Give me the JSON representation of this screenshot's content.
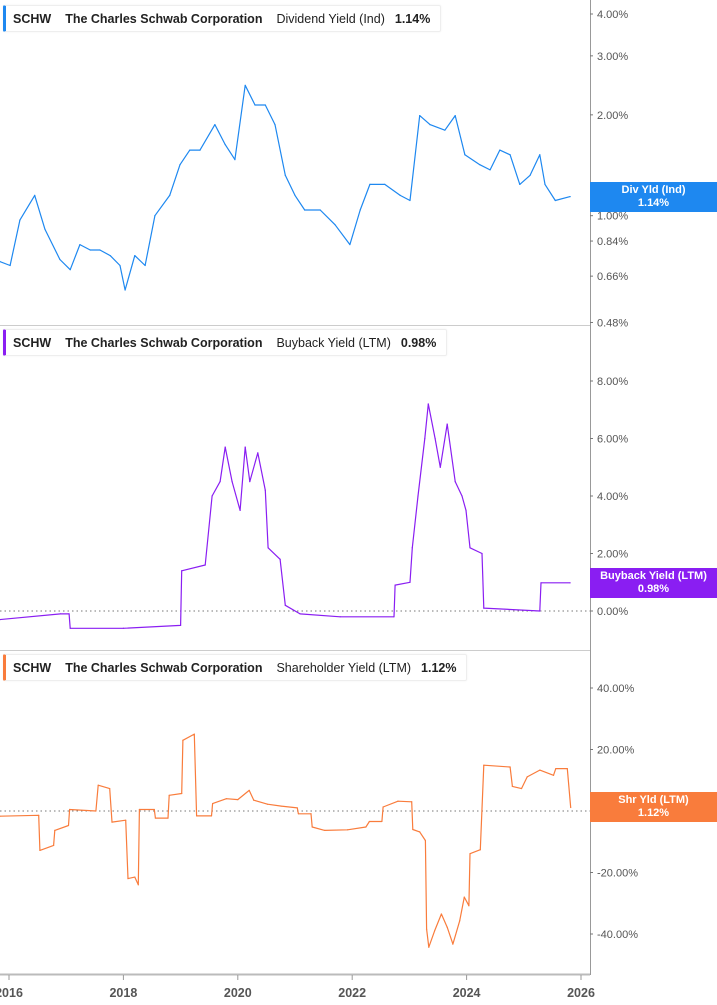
{
  "chart_data": [
    {
      "type": "line",
      "ticker": "SCHW",
      "company": "The Charles Schwab Corporation",
      "metric": "Dividend Yield (Ind)",
      "latest_value": "1.14%",
      "tag_label": "Div Yld (Ind)",
      "color": "#1e88f0",
      "y_scale": "log",
      "yticks": [
        "0.48%",
        "0.66%",
        "0.84%",
        "1.00%",
        "2.00%",
        "3.00%",
        "4.00%"
      ],
      "ytick_values": [
        0.48,
        0.66,
        0.84,
        1.0,
        2.0,
        3.0,
        4.0
      ],
      "x": [
        2015.84,
        2016.02,
        2016.19,
        2016.45,
        2016.63,
        2016.89,
        2017.07,
        2017.24,
        2017.42,
        2017.59,
        2017.77,
        2017.94,
        2018.03,
        2018.2,
        2018.38,
        2018.55,
        2018.81,
        2018.99,
        2019.16,
        2019.34,
        2019.6,
        2019.78,
        2019.95,
        2020.13,
        2020.3,
        2020.48,
        2020.65,
        2020.83,
        2021.0,
        2021.17,
        2021.44,
        2021.7,
        2021.96,
        2022.14,
        2022.31,
        2022.57,
        2022.84,
        2023.01,
        2023.18,
        2023.36,
        2023.62,
        2023.8,
        2023.97,
        2024.23,
        2024.41,
        2024.58,
        2024.76,
        2024.93,
        2025.11,
        2025.28,
        2025.37,
        2025.55,
        2025.81
      ],
      "values": [
        0.73,
        0.71,
        0.97,
        1.15,
        0.91,
        0.74,
        0.69,
        0.82,
        0.79,
        0.79,
        0.76,
        0.71,
        0.6,
        0.76,
        0.71,
        1.0,
        1.15,
        1.42,
        1.57,
        1.57,
        1.87,
        1.63,
        1.47,
        2.45,
        2.14,
        2.14,
        1.87,
        1.32,
        1.15,
        1.04,
        1.04,
        0.94,
        0.82,
        1.04,
        1.24,
        1.24,
        1.15,
        1.11,
        1.99,
        1.87,
        1.8,
        1.99,
        1.52,
        1.42,
        1.37,
        1.57,
        1.52,
        1.24,
        1.32,
        1.52,
        1.24,
        1.11,
        1.14
      ]
    },
    {
      "type": "line",
      "ticker": "SCHW",
      "company": "The Charles Schwab Corporation",
      "metric": "Buyback Yield (LTM)",
      "latest_value": "0.98%",
      "tag_label": "Buyback Yield (LTM)",
      "color": "#8a1ef2",
      "y_scale": "linear",
      "yticks": [
        "0.00%",
        "2.00%",
        "4.00%",
        "6.00%",
        "8.00%"
      ],
      "ytick_values": [
        0,
        2,
        4,
        6,
        8
      ],
      "x": [
        2015.84,
        2016.9,
        2017.05,
        2017.07,
        2018.0,
        2019.0,
        2019.02,
        2019.43,
        2019.55,
        2019.69,
        2019.78,
        2019.9,
        2020.04,
        2020.13,
        2020.21,
        2020.35,
        2020.48,
        2020.53,
        2020.74,
        2020.83,
        2021.09,
        2021.79,
        2022.73,
        2022.75,
        2023.01,
        2023.05,
        2023.15,
        2023.27,
        2023.33,
        2023.45,
        2023.54,
        2023.66,
        2023.8,
        2023.92,
        2023.99,
        2024.06,
        2024.27,
        2024.3,
        2025.28,
        2025.3,
        2025.81
      ],
      "values": [
        -0.3,
        -0.1,
        -0.1,
        -0.6,
        -0.6,
        -0.5,
        1.4,
        1.6,
        4.0,
        4.5,
        5.7,
        4.5,
        3.5,
        5.7,
        4.5,
        5.5,
        4.2,
        2.2,
        1.8,
        0.2,
        -0.1,
        -0.2,
        -0.2,
        0.9,
        1.0,
        2.2,
        4.0,
        6.0,
        7.2,
        6.0,
        5.0,
        6.5,
        4.5,
        4.0,
        3.5,
        2.2,
        2.0,
        0.1,
        0.0,
        0.98,
        0.98
      ]
    },
    {
      "type": "line",
      "ticker": "SCHW",
      "company": "The Charles Schwab Corporation",
      "metric": "Shareholder Yield (LTM)",
      "latest_value": "1.12%",
      "tag_label": "Shr Yld (LTM)",
      "color": "#f97c3c",
      "y_scale": "linear",
      "yticks": [
        "-40.00%",
        "-20.00%",
        "0.00%",
        "20.00%",
        "40.00%"
      ],
      "ytick_values": [
        -40,
        -20,
        0,
        20,
        40
      ],
      "x": [
        2015.84,
        2016.52,
        2016.54,
        2016.78,
        2016.8,
        2017.04,
        2017.06,
        2017.52,
        2017.56,
        2017.76,
        2017.8,
        2018.04,
        2018.08,
        2018.2,
        2018.26,
        2018.28,
        2018.54,
        2018.56,
        2018.78,
        2018.8,
        2019.02,
        2019.04,
        2019.24,
        2019.28,
        2019.54,
        2019.56,
        2019.8,
        2020.0,
        2020.2,
        2020.28,
        2020.52,
        2020.76,
        2021.04,
        2021.06,
        2021.28,
        2021.3,
        2021.52,
        2021.92,
        2022.24,
        2022.3,
        2022.52,
        2022.54,
        2022.8,
        2023.04,
        2023.06,
        2023.18,
        2023.28,
        2023.3,
        2023.34,
        2023.44,
        2023.56,
        2023.66,
        2023.76,
        2023.88,
        2023.96,
        2024.04,
        2024.06,
        2024.24,
        2024.3,
        2024.76,
        2024.8,
        2024.96,
        2025.06,
        2025.28,
        2025.52,
        2025.56,
        2025.76,
        2025.82
      ],
      "values": [
        -1.7,
        -1.4,
        -12.8,
        -11.2,
        -6.3,
        -4.7,
        0.5,
        0,
        8.4,
        7.3,
        -3.6,
        -3,
        -22,
        -21.5,
        -24,
        0.5,
        0.5,
        -2.3,
        -2.3,
        5.1,
        5.7,
        23,
        25,
        -1.6,
        -1.6,
        2.4,
        4,
        3.7,
        6.7,
        3.5,
        2.2,
        1.6,
        1.0,
        -0.9,
        -0.9,
        -5.2,
        -6.3,
        -6.1,
        -5.2,
        -3.4,
        -3.4,
        1.3,
        3.2,
        3.0,
        -6,
        -6.8,
        -9.6,
        -38.4,
        -44.3,
        -39,
        -33.5,
        -37.8,
        -43.3,
        -35.7,
        -28,
        -30.8,
        -13.9,
        -12.6,
        14.9,
        14.3,
        8.0,
        7.3,
        11.1,
        13.3,
        11.6,
        13.8,
        13.8,
        1.12
      ]
    }
  ],
  "x_axis": {
    "ticks": [
      "2016",
      "2018",
      "2020",
      "2022",
      "2024",
      "2026"
    ],
    "tick_values": [
      2016,
      2018,
      2020,
      2022,
      2024,
      2026
    ]
  }
}
